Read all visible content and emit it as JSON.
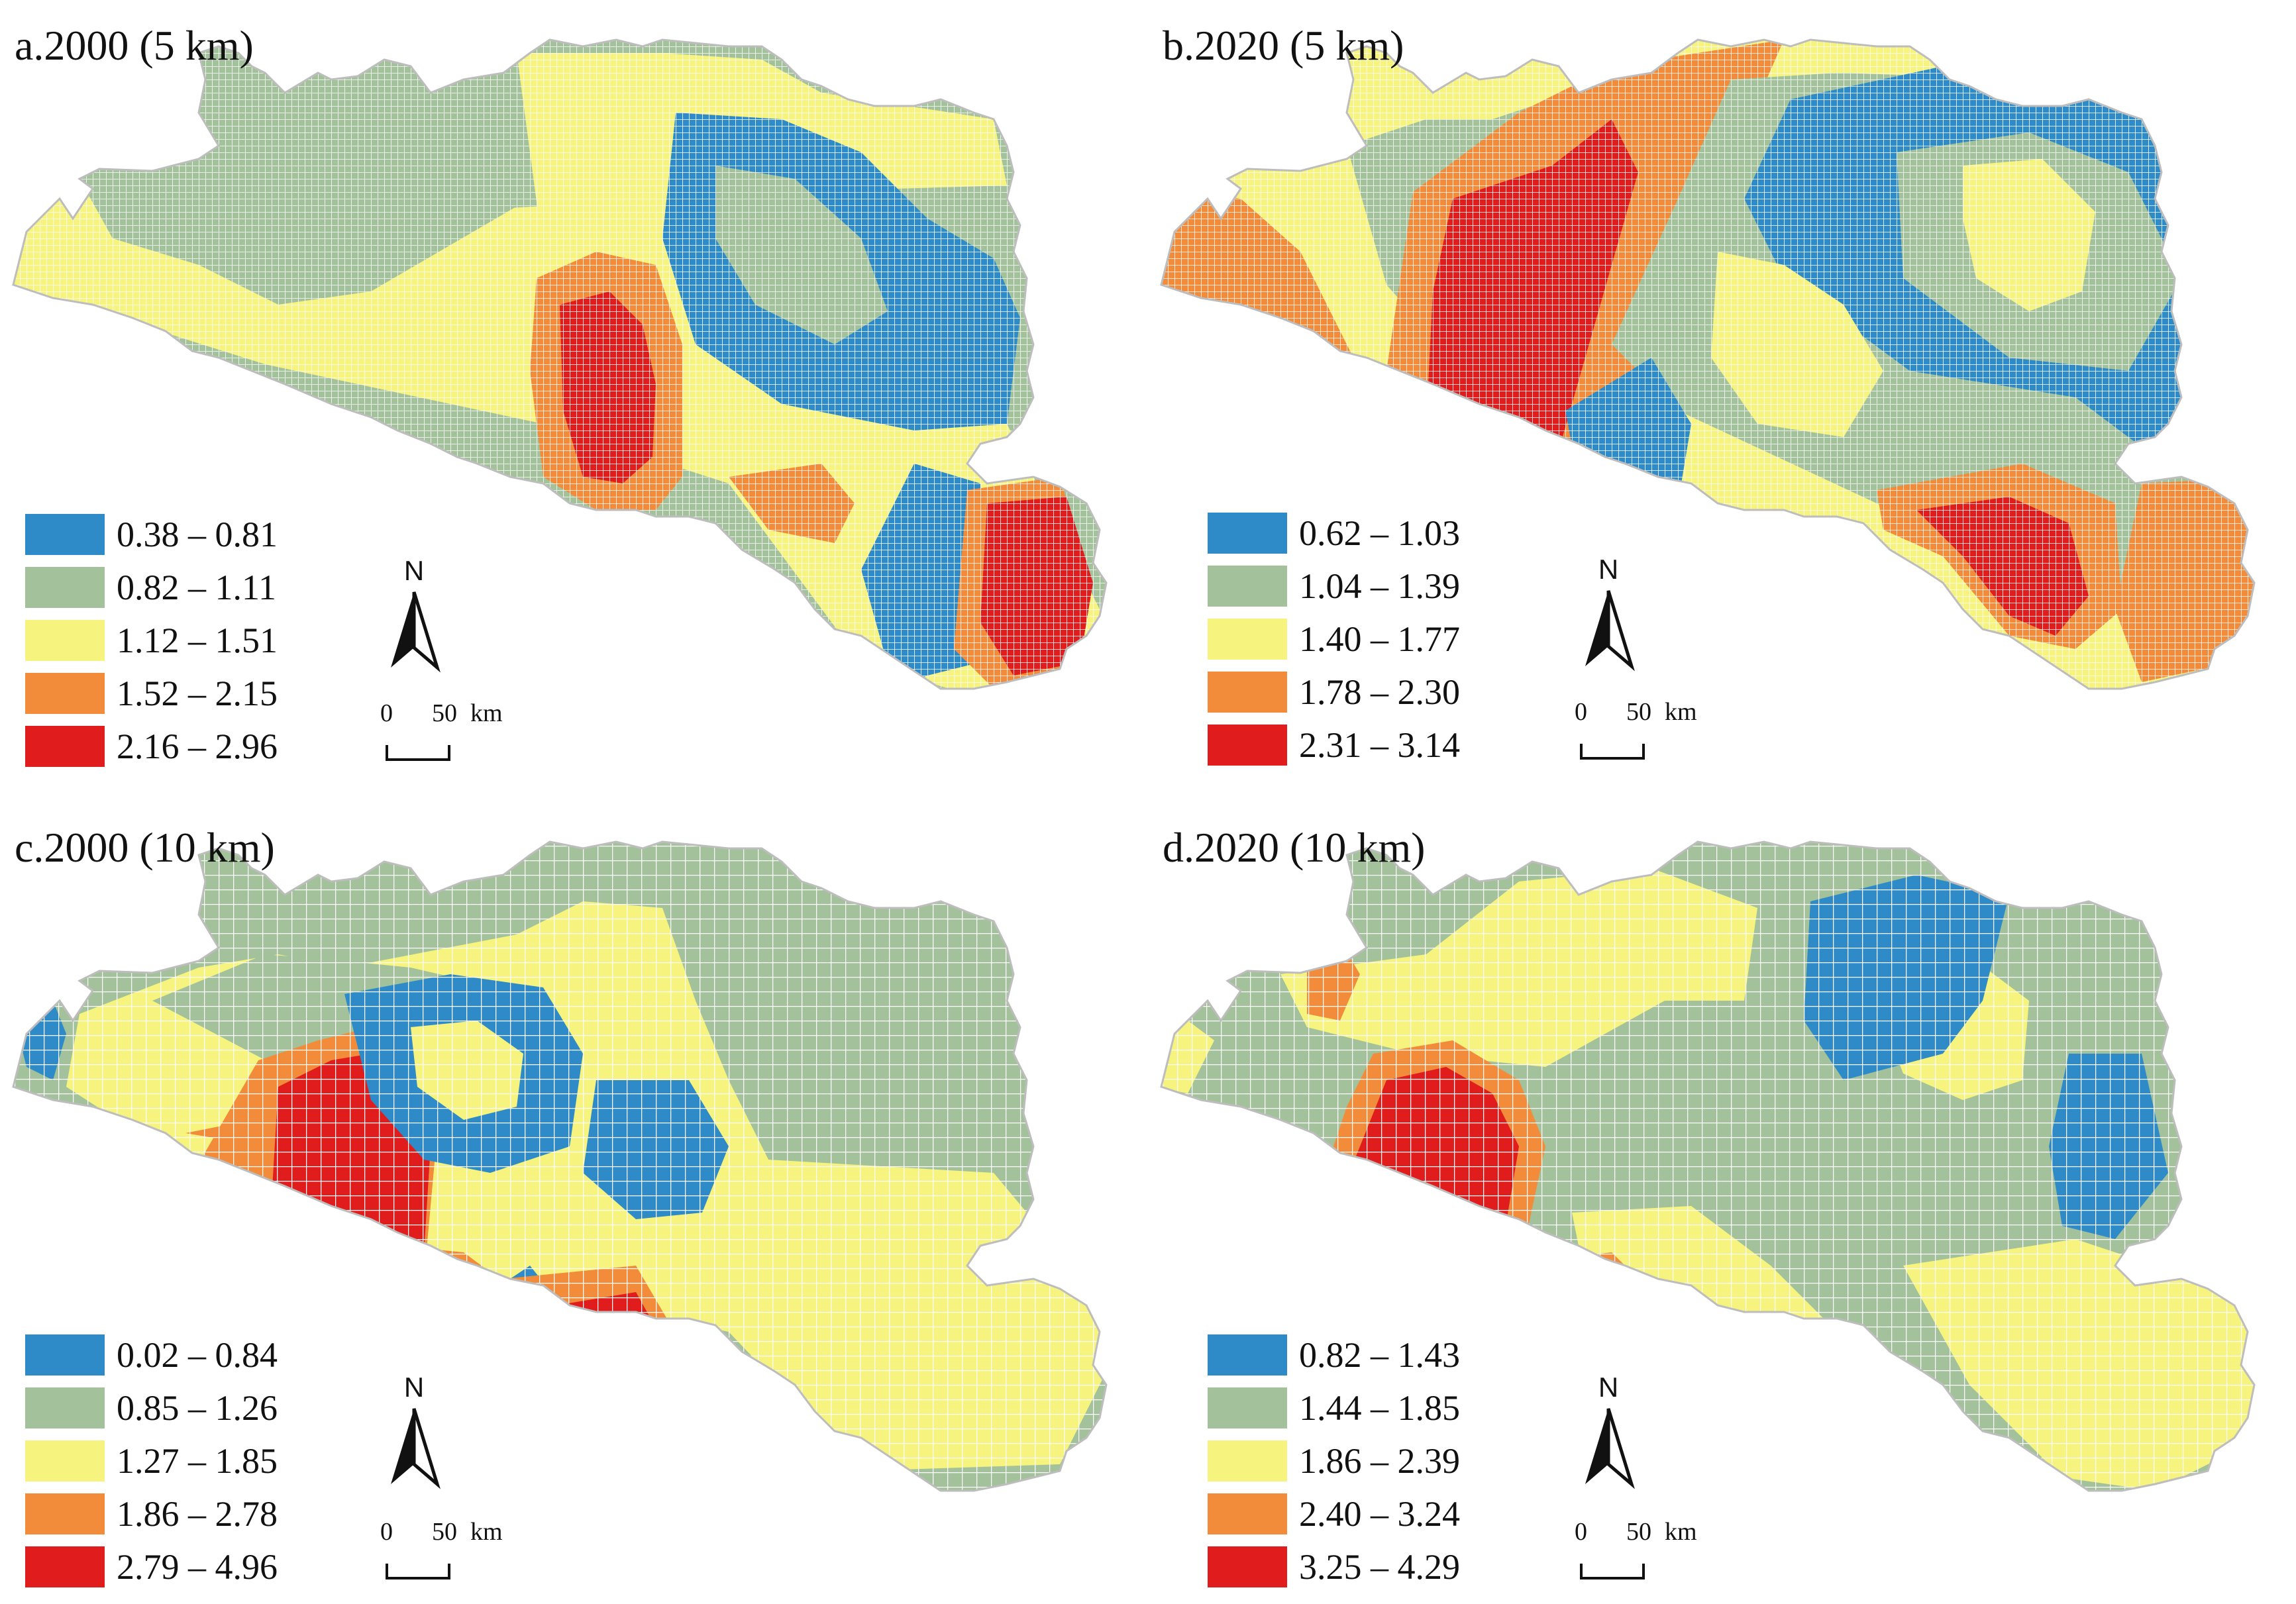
{
  "colors": {
    "blue": "#2e8bc8",
    "green": "#a3c29b",
    "yellow": "#f6f47e",
    "orange": "#f28c3a",
    "red": "#e01c1c",
    "grid": "#ffffff"
  },
  "panels": [
    {
      "title": "a.2000 (5 km)",
      "grid_step": "fine",
      "legend": [
        {
          "label": "0.38 – 0.81",
          "color": "blue"
        },
        {
          "label": "0.82 – 1.11",
          "color": "green"
        },
        {
          "label": "1.12 – 1.51",
          "color": "yellow"
        },
        {
          "label": "1.52 – 2.15",
          "color": "orange"
        },
        {
          "label": "2.16 – 2.96",
          "color": "red"
        }
      ],
      "north_label": "N",
      "scale": {
        "zero": "0",
        "fifty": "50",
        "unit": "km"
      }
    },
    {
      "title": "b.2020 (5 km)",
      "grid_step": "fine",
      "legend": [
        {
          "label": "0.62 – 1.03",
          "color": "blue"
        },
        {
          "label": "1.04 – 1.39",
          "color": "green"
        },
        {
          "label": "1.40 – 1.77",
          "color": "yellow"
        },
        {
          "label": "1.78 – 2.30",
          "color": "orange"
        },
        {
          "label": "2.31 – 3.14",
          "color": "red"
        }
      ],
      "north_label": "N",
      "scale": {
        "zero": "0",
        "fifty": "50",
        "unit": "km"
      }
    },
    {
      "title": "c.2000 (10 km)",
      "grid_step": "coarse",
      "legend": [
        {
          "label": "0.02 – 0.84",
          "color": "blue"
        },
        {
          "label": "0.85 – 1.26",
          "color": "green"
        },
        {
          "label": "1.27 – 1.85",
          "color": "yellow"
        },
        {
          "label": "1.86 – 2.78",
          "color": "orange"
        },
        {
          "label": "2.79 – 4.96",
          "color": "red"
        }
      ],
      "north_label": "N",
      "scale": {
        "zero": "0",
        "fifty": "50",
        "unit": "km"
      }
    },
    {
      "title": "d.2020 (10 km)",
      "grid_step": "coarse",
      "legend": [
        {
          "label": "0.82 – 1.43",
          "color": "blue"
        },
        {
          "label": "1.44 – 1.85",
          "color": "green"
        },
        {
          "label": "1.86 – 2.39",
          "color": "yellow"
        },
        {
          "label": "2.40 – 3.24",
          "color": "orange"
        },
        {
          "label": "3.25 – 4.29",
          "color": "red"
        }
      ],
      "north_label": "N",
      "scale": {
        "zero": "0",
        "fifty": "50",
        "unit": "km"
      }
    }
  ]
}
